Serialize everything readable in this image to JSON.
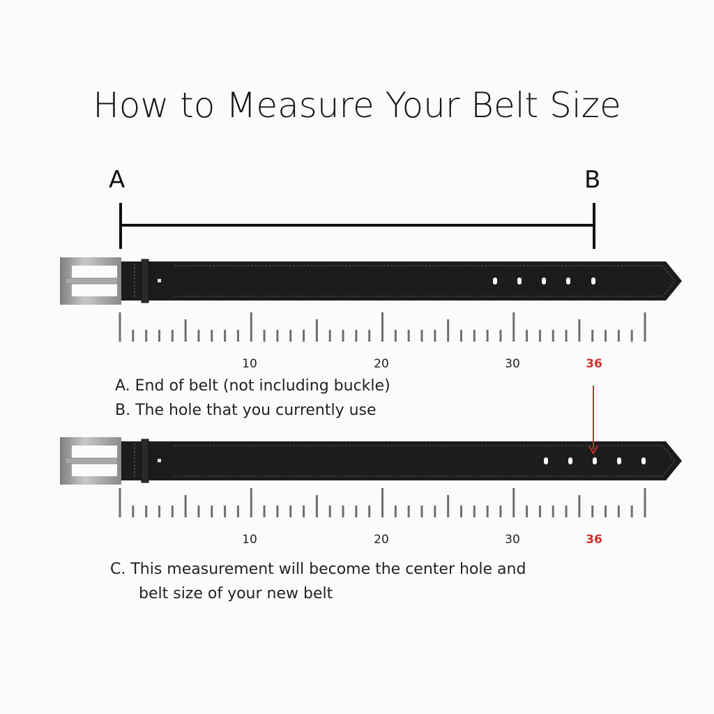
{
  "title": "How to Measure Your Belt Size",
  "measure": {
    "point_a": "A",
    "point_b": "B"
  },
  "ruler_labels": [
    "10",
    "20",
    "30"
  ],
  "highlight_size": "36",
  "notes": {
    "a": "A. End of belt (not including buckle)",
    "b": "B. The hole that you currently use",
    "c_line1": "C. This measurement will  become the center hole and",
    "c_line2": "belt size of your new belt"
  },
  "colors": {
    "belt": "#1c1c1c",
    "buckle": "#9a9a9a",
    "tick": "#6e6e6e",
    "accent": "#d0312d"
  }
}
